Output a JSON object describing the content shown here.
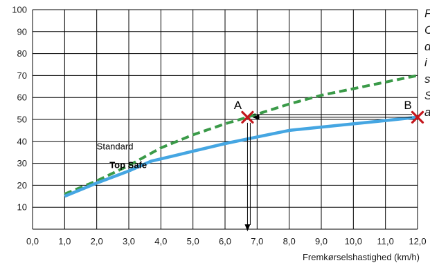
{
  "chart_data": {
    "type": "line",
    "title": "",
    "xlabel": "Fremkørselshastighed (km/h)",
    "ylabel": "",
    "xlim": [
      0,
      12
    ],
    "ylim": [
      0,
      100
    ],
    "x_ticks": [
      "0,0",
      "1,0",
      "2,0",
      "3,0",
      "4,0",
      "5,0",
      "6,0",
      "7,0",
      "8,0",
      "9,0",
      "10,0",
      "11,0",
      "12,0"
    ],
    "y_ticks": [
      "100",
      "90",
      "80",
      "70",
      "60",
      "50",
      "40",
      "30",
      "20",
      "10"
    ],
    "grid": true,
    "series": [
      {
        "name": "Standard",
        "style": "dashed",
        "color": "#3a9a48",
        "points": [
          [
            1.0,
            16
          ],
          [
            2.0,
            22
          ],
          [
            3.0,
            29
          ],
          [
            4.0,
            37
          ],
          [
            5.0,
            43
          ],
          [
            6.0,
            48
          ],
          [
            6.7,
            51
          ],
          [
            8.0,
            57
          ],
          [
            9.0,
            61
          ],
          [
            10.0,
            64
          ],
          [
            11.0,
            67
          ],
          [
            12.0,
            70
          ]
        ]
      },
      {
        "name": "Top Safe",
        "style": "solid",
        "color": "#45a6e2",
        "points": [
          [
            1.0,
            15
          ],
          [
            2.0,
            21
          ],
          [
            3.0,
            26.5
          ],
          [
            3.7,
            31
          ],
          [
            4.0,
            32
          ],
          [
            5.0,
            35.5
          ],
          [
            6.0,
            39
          ],
          [
            7.0,
            42
          ],
          [
            8.0,
            45
          ],
          [
            9.0,
            46.5
          ],
          [
            10.0,
            48
          ],
          [
            11.0,
            49.5
          ],
          [
            12.0,
            51
          ]
        ]
      }
    ],
    "points": [
      {
        "label": "A",
        "x": 6.7,
        "y": 51,
        "marker": "x",
        "color": "#c4161c"
      },
      {
        "label": "B",
        "x": 12.0,
        "y": 51,
        "marker": "x",
        "color": "#c4161c"
      }
    ],
    "annotations": {
      "arrow_B_to_A": "horizontal arrow from B to A at y = 51",
      "arrow_A_down": "vertical arrow from A down to x axis at x = 6,7"
    }
  },
  "side_note_lines": [
    "F",
    "C",
    "d",
    "i",
    "s",
    "S",
    "a"
  ]
}
